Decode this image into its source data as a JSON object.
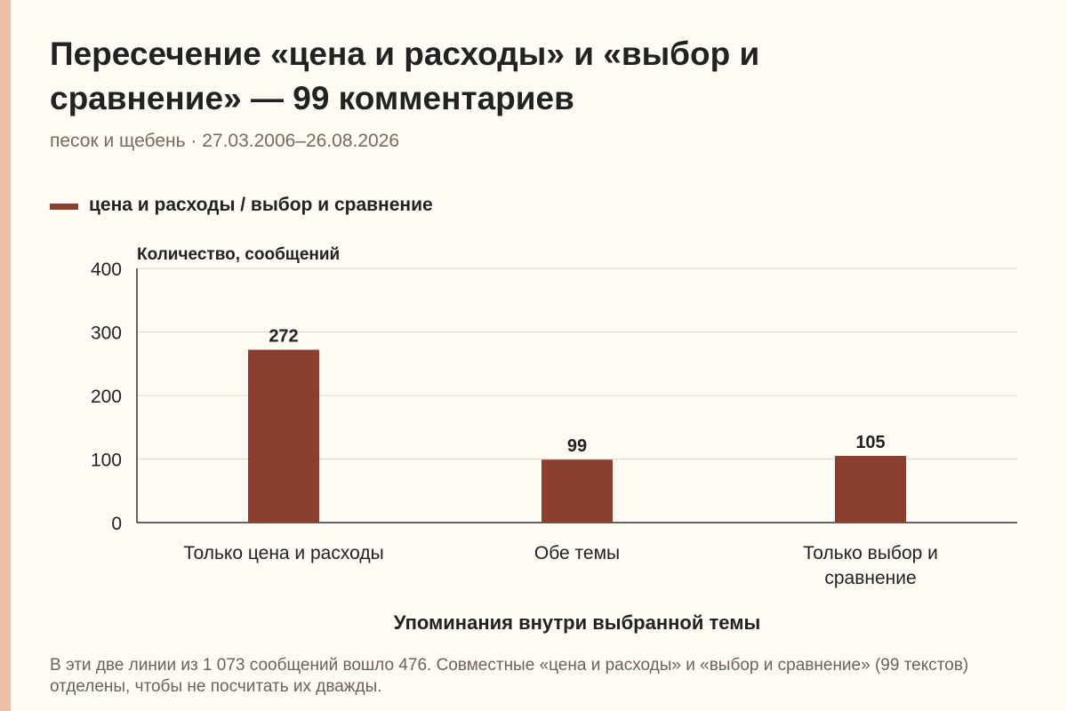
{
  "title": "Пересечение «цена и расходы» и «выбор и сравнение» — 99 комментариев",
  "subtitle": "песок и щебень · 27.03.2006–26.08.2026",
  "footnote": "В эти две линии из 1 073 сообщений вошло 476. Совместные «цена и расходы» и «выбор и сравнение» (99 текстов) отделены, чтобы не посчитать их дважды.",
  "colors": {
    "bar": "#8a3f2f",
    "accent": "#edc1a6",
    "background": "#fdfbf4",
    "grid": "#dcd8d0"
  },
  "chart_data": {
    "type": "bar",
    "categories": [
      "Только цена и расходы",
      "Обе темы",
      "Только выбор и сравнение"
    ],
    "series": [
      {
        "name": "цена и расходы / выбор и сравнение",
        "values": [
          272,
          99,
          105
        ]
      }
    ],
    "data_labels": [
      "272",
      "99",
      "105"
    ],
    "xlabel": "Упоминания внутри выбранной темы",
    "ylabel": "Количество, сообщений",
    "ylim": [
      0,
      400
    ],
    "yticks": [
      0,
      100,
      200,
      300,
      400
    ],
    "grid": true,
    "legend_position": "top-left"
  }
}
